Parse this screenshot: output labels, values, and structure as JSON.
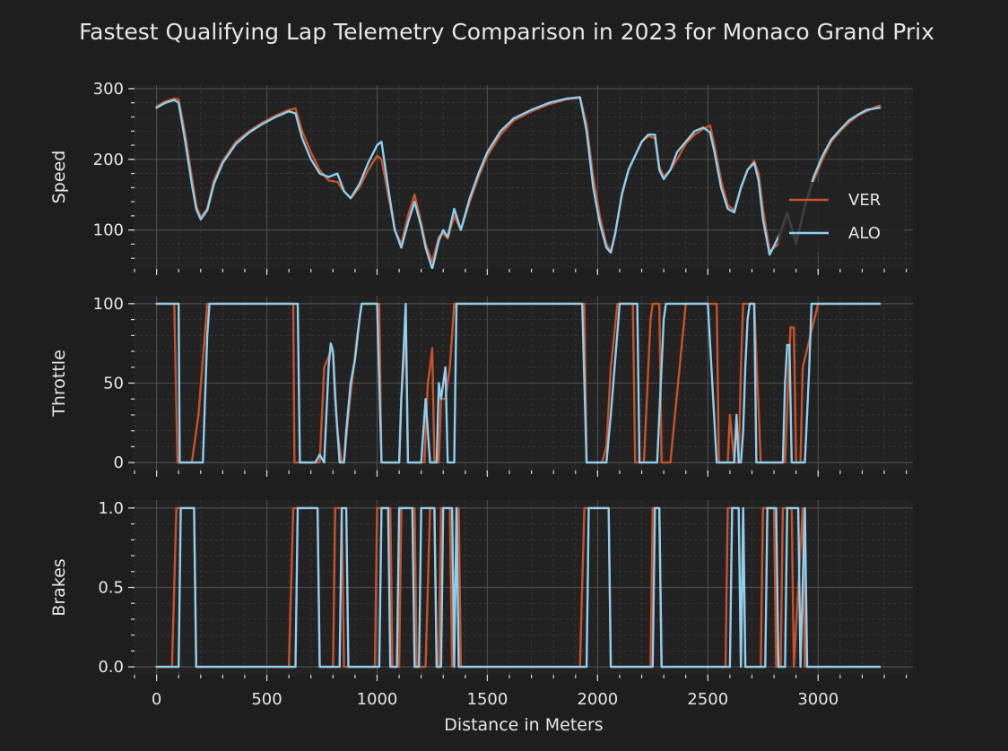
{
  "title": "Fastest Qualifying Lap Telemetry Comparison in 2023 for Monaco Grand Prix",
  "colors": {
    "VER": "#c8522a",
    "ALO": "#8ccfee",
    "background": "#1e1e1e",
    "axes_background": "#222222"
  },
  "chart_data": [
    {
      "type": "line",
      "ylabel": "Speed",
      "xlabel": "",
      "xlim": [
        -100,
        3430
      ],
      "ylim": [
        45,
        305
      ],
      "yticks": [
        "100",
        "200",
        "300"
      ],
      "yticks_values": [
        100,
        200,
        300
      ],
      "xticks_values": [
        0,
        500,
        1000,
        1500,
        2000,
        2500,
        3000
      ],
      "grid": true,
      "legend": "right",
      "series": [
        {
          "name": "VER",
          "x": [
            0,
            40,
            80,
            100,
            130,
            160,
            180,
            200,
            230,
            260,
            300,
            360,
            420,
            480,
            540,
            600,
            630,
            660,
            700,
            740,
            780,
            820,
            850,
            880,
            920,
            960,
            1000,
            1020,
            1050,
            1080,
            1110,
            1140,
            1170,
            1200,
            1220,
            1250,
            1280,
            1300,
            1320,
            1350,
            1380,
            1420,
            1460,
            1500,
            1560,
            1620,
            1700,
            1780,
            1860,
            1920,
            1950,
            1980,
            2010,
            2040,
            2060,
            2080,
            2110,
            2140,
            2170,
            2200,
            2230,
            2260,
            2280,
            2300,
            2330,
            2360,
            2400,
            2440,
            2480,
            2510,
            2530,
            2560,
            2590,
            2620,
            2650,
            2680,
            2710,
            2730,
            2750,
            2780,
            2820,
            2860,
            2900,
            2940,
            2980,
            3020,
            3060,
            3100,
            3140,
            3180,
            3220,
            3260,
            3280
          ],
          "values": [
            275,
            282,
            286,
            285,
            235,
            175,
            135,
            118,
            130,
            170,
            198,
            225,
            240,
            252,
            262,
            270,
            272,
            240,
            210,
            185,
            170,
            168,
            155,
            145,
            160,
            185,
            205,
            200,
            150,
            100,
            80,
            120,
            150,
            110,
            80,
            55,
            90,
            95,
            88,
            120,
            100,
            140,
            175,
            205,
            235,
            255,
            268,
            278,
            285,
            287,
            250,
            175,
            120,
            80,
            70,
            95,
            150,
            185,
            205,
            225,
            233,
            230,
            190,
            175,
            185,
            200,
            222,
            235,
            243,
            248,
            220,
            170,
            135,
            128,
            160,
            185,
            198,
            180,
            130,
            70,
            80,
            120,
            85,
            130,
            170,
            200,
            225,
            240,
            252,
            262,
            268,
            274,
            276
          ]
        },
        {
          "name": "ALO",
          "x": [
            0,
            40,
            80,
            100,
            130,
            160,
            180,
            200,
            230,
            260,
            300,
            360,
            420,
            480,
            540,
            600,
            630,
            660,
            700,
            740,
            780,
            820,
            850,
            880,
            920,
            960,
            1000,
            1020,
            1050,
            1080,
            1110,
            1140,
            1170,
            1200,
            1220,
            1250,
            1280,
            1300,
            1320,
            1350,
            1380,
            1420,
            1460,
            1500,
            1560,
            1620,
            1700,
            1780,
            1860,
            1920,
            1950,
            1980,
            2010,
            2040,
            2060,
            2080,
            2110,
            2140,
            2170,
            2200,
            2230,
            2260,
            2280,
            2300,
            2330,
            2360,
            2400,
            2440,
            2480,
            2510,
            2530,
            2560,
            2590,
            2620,
            2650,
            2680,
            2710,
            2730,
            2750,
            2780,
            2820,
            2860,
            2900,
            2940,
            2980,
            3020,
            3060,
            3100,
            3140,
            3180,
            3220,
            3260,
            3280
          ],
          "values": [
            273,
            280,
            284,
            280,
            225,
            165,
            130,
            115,
            128,
            165,
            195,
            222,
            238,
            250,
            260,
            268,
            265,
            230,
            200,
            180,
            175,
            180,
            155,
            145,
            165,
            195,
            220,
            225,
            160,
            100,
            75,
            110,
            140,
            105,
            75,
            45,
            85,
            100,
            90,
            130,
            100,
            145,
            180,
            210,
            240,
            258,
            270,
            280,
            286,
            288,
            240,
            160,
            110,
            75,
            68,
            95,
            150,
            185,
            205,
            225,
            235,
            235,
            185,
            172,
            185,
            210,
            225,
            240,
            245,
            238,
            210,
            160,
            130,
            125,
            160,
            185,
            195,
            170,
            115,
            65,
            90,
            125,
            80,
            135,
            175,
            205,
            228,
            242,
            255,
            263,
            270,
            272,
            273
          ]
        }
      ]
    },
    {
      "type": "line",
      "ylabel": "Throttle",
      "xlabel": "",
      "xlim": [
        -100,
        3430
      ],
      "ylim": [
        -5,
        105
      ],
      "yticks": [
        "0",
        "50",
        "100"
      ],
      "yticks_values": [
        0,
        50,
        100
      ],
      "xticks_values": [
        0,
        500,
        1000,
        1500,
        2000,
        2500,
        3000
      ],
      "grid": true,
      "series": [
        {
          "name": "VER",
          "x": [
            0,
            70,
            80,
            95,
            160,
            190,
            230,
            600,
            620,
            625,
            640,
            700,
            720,
            740,
            760,
            790,
            800,
            820,
            840,
            850,
            870,
            890,
            910,
            930,
            960,
            1000,
            1010,
            1020,
            1040,
            1100,
            1110,
            1120,
            1130,
            1140,
            1160,
            1175,
            1195,
            1215,
            1230,
            1240,
            1250,
            1260,
            1265,
            1280,
            1290,
            1310,
            1330,
            1350,
            1360,
            1500,
            1920,
            1940,
            1950,
            1980,
            2000,
            2020,
            2040,
            2060,
            2090,
            2150,
            2160,
            2170,
            2180,
            2210,
            2240,
            2250,
            2280,
            2290,
            2320,
            2330,
            2400,
            2480,
            2540,
            2550,
            2560,
            2570,
            2590,
            2600,
            2620,
            2640,
            2650,
            2660,
            2680,
            2690,
            2710,
            2740,
            2780,
            2810,
            2830,
            2840,
            2850,
            2870,
            2875,
            2890,
            2900,
            2910,
            2920,
            2930,
            3000,
            3100,
            3280
          ],
          "values": [
            100,
            100,
            100,
            0,
            0,
            30,
            100,
            100,
            100,
            0,
            0,
            0,
            0,
            0,
            60,
            70,
            70,
            20,
            0,
            0,
            30,
            55,
            80,
            100,
            100,
            100,
            100,
            0,
            0,
            0,
            40,
            60,
            90,
            0,
            0,
            0,
            0,
            0,
            50,
            60,
            72,
            0,
            0,
            0,
            40,
            40,
            60,
            100,
            100,
            100,
            100,
            100,
            0,
            0,
            0,
            0,
            10,
            60,
            100,
            100,
            100,
            0,
            0,
            0,
            90,
            100,
            100,
            0,
            0,
            0,
            100,
            100,
            100,
            0,
            0,
            0,
            0,
            30,
            0,
            0,
            60,
            100,
            100,
            100,
            100,
            0,
            0,
            0,
            0,
            0,
            0,
            70,
            85,
            85,
            0,
            0,
            0,
            60,
            100,
            100,
            100
          ]
        },
        {
          "name": "ALO",
          "x": [
            0,
            80,
            100,
            105,
            120,
            180,
            210,
            230,
            240,
            600,
            640,
            650,
            700,
            720,
            740,
            760,
            780,
            790,
            800,
            810,
            830,
            850,
            860,
            880,
            900,
            920,
            930,
            960,
            1000,
            1020,
            1040,
            1100,
            1110,
            1120,
            1130,
            1140,
            1150,
            1170,
            1180,
            1200,
            1220,
            1240,
            1260,
            1270,
            1280,
            1290,
            1310,
            1320,
            1335,
            1350,
            1360,
            1420,
            1500,
            1930,
            1950,
            1960,
            1980,
            2000,
            2020,
            2040,
            2060,
            2100,
            2160,
            2180,
            2190,
            2200,
            2240,
            2270,
            2300,
            2310,
            2320,
            2330,
            2360,
            2420,
            2500,
            2540,
            2560,
            2570,
            2600,
            2620,
            2630,
            2640,
            2650,
            2660,
            2670,
            2680,
            2690,
            2700,
            2710,
            2720,
            2740,
            2760,
            2800,
            2820,
            2840,
            2850,
            2860,
            2870,
            2880,
            2900,
            2920,
            2940,
            2960,
            2970,
            3000,
            3100,
            3280
          ],
          "values": [
            100,
            100,
            100,
            0,
            0,
            0,
            0,
            80,
            100,
            100,
            100,
            0,
            0,
            0,
            5,
            0,
            60,
            75,
            70,
            40,
            0,
            0,
            20,
            50,
            65,
            90,
            100,
            100,
            100,
            0,
            0,
            0,
            40,
            70,
            100,
            0,
            0,
            0,
            0,
            0,
            40,
            0,
            0,
            0,
            50,
            40,
            60,
            0,
            0,
            0,
            100,
            100,
            100,
            100,
            0,
            0,
            0,
            0,
            0,
            0,
            30,
            100,
            100,
            100,
            0,
            0,
            0,
            0,
            90,
            100,
            100,
            100,
            100,
            100,
            100,
            0,
            0,
            0,
            0,
            0,
            30,
            0,
            0,
            20,
            60,
            90,
            100,
            100,
            100,
            0,
            0,
            0,
            0,
            0,
            0,
            50,
            74,
            74,
            0,
            0,
            0,
            0,
            60,
            100,
            100,
            100,
            100
          ]
        }
      ]
    },
    {
      "type": "line",
      "ylabel": "Brakes",
      "xlabel": "Distance in Meters",
      "xlim": [
        -100,
        3430
      ],
      "ylim": [
        -0.05,
        1.05
      ],
      "yticks": [
        "0.0",
        "0.5",
        "1.0"
      ],
      "yticks_values": [
        0,
        0.5,
        1
      ],
      "xticks": [
        "0",
        "500",
        "1000",
        "1500",
        "2000",
        "2500",
        "3000"
      ],
      "xticks_values": [
        0,
        500,
        1000,
        1500,
        2000,
        2500,
        3000
      ],
      "grid": true,
      "series": [
        {
          "name": "VER",
          "x": [
            0,
            70,
            90,
            170,
            180,
            600,
            620,
            730,
            740,
            800,
            810,
            840,
            850,
            990,
            1000,
            1060,
            1070,
            1100,
            1110,
            1170,
            1180,
            1220,
            1240,
            1260,
            1270,
            1280,
            1290,
            1330,
            1340,
            1370,
            1380,
            1920,
            1940,
            2050,
            2060,
            2240,
            2250,
            2280,
            2290,
            2580,
            2590,
            2640,
            2650,
            2660,
            2670,
            2740,
            2750,
            2800,
            2810,
            2830,
            2840,
            2880,
            2890,
            2930,
            2940,
            3280
          ],
          "values": [
            0,
            0,
            1,
            1,
            0,
            0,
            1,
            1,
            0,
            0,
            1,
            1,
            0,
            0,
            1,
            1,
            0,
            0,
            1,
            1,
            0,
            0,
            1,
            1,
            0,
            0,
            1,
            1,
            0,
            1,
            0,
            0,
            1,
            1,
            0,
            0,
            1,
            1,
            0,
            0,
            1,
            1,
            0,
            1,
            0,
            0,
            1,
            1,
            0,
            0,
            1,
            1,
            0,
            1,
            0,
            0
          ]
        },
        {
          "name": "ALO",
          "x": [
            0,
            100,
            110,
            170,
            180,
            630,
            640,
            730,
            740,
            830,
            840,
            860,
            870,
            1010,
            1020,
            1050,
            1060,
            1090,
            1100,
            1160,
            1170,
            1190,
            1200,
            1260,
            1270,
            1290,
            1300,
            1340,
            1350,
            1360,
            1370,
            1950,
            1960,
            2050,
            2060,
            2250,
            2260,
            2280,
            2290,
            2600,
            2610,
            2640,
            2650,
            2660,
            2670,
            2760,
            2770,
            2810,
            2820,
            2850,
            2860,
            2910,
            2920,
            2940,
            2950,
            3280
          ],
          "values": [
            0,
            0,
            1,
            1,
            0,
            0,
            1,
            1,
            0,
            0,
            1,
            1,
            0,
            0,
            1,
            1,
            0,
            0,
            1,
            1,
            0,
            0,
            1,
            1,
            0,
            0,
            1,
            1,
            0,
            1,
            0,
            0,
            1,
            1,
            0,
            0,
            1,
            1,
            0,
            0,
            1,
            1,
            0,
            1,
            0,
            0,
            1,
            1,
            0,
            0,
            1,
            1,
            0,
            1,
            0,
            0
          ]
        }
      ]
    }
  ]
}
